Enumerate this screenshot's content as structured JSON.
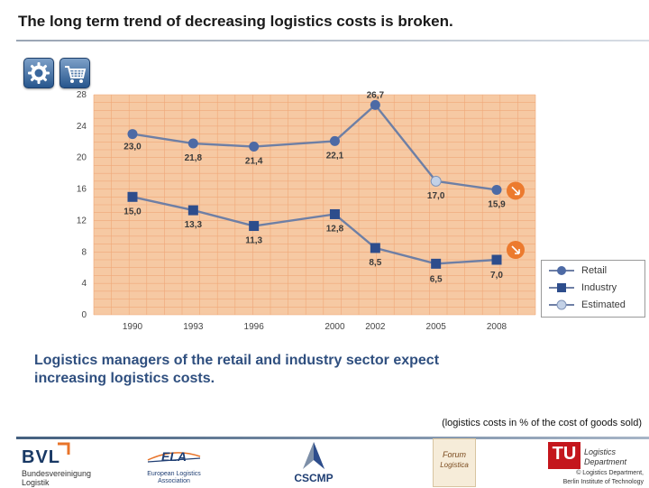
{
  "header": {
    "title": "The long term trend of decreasing logistics costs is broken."
  },
  "toolbar": {
    "icons": [
      "settings-gear-icon",
      "shopping-cart-icon"
    ]
  },
  "message": {
    "line1": "Logistics managers of the retail and industry sector expect",
    "line2": "increasing logistics costs."
  },
  "note": "(logistics costs in % of the cost of goods sold)",
  "chart_data": {
    "type": "line",
    "x": [
      1990,
      1993,
      1996,
      2000,
      2002,
      2005,
      2008
    ],
    "categories": [
      "1990",
      "1993",
      "1996",
      "2000",
      "2002",
      "2005",
      "2008"
    ],
    "ylim": [
      0,
      28
    ],
    "yticks": [
      0,
      4,
      8,
      12,
      16,
      20,
      24,
      28
    ],
    "series": [
      {
        "name": "Retail",
        "marker": "circle",
        "values": [
          23.0,
          21.8,
          21.4,
          22.1,
          26.7,
          17.0,
          15.9
        ],
        "labels": [
          "23,0",
          "21,8",
          "21,4",
          "22,1",
          "26,7",
          "17,0",
          "15,9"
        ]
      },
      {
        "name": "Industry",
        "marker": "square",
        "values": [
          15.0,
          13.3,
          11.3,
          12.8,
          8.5,
          6.5,
          7.0
        ],
        "labels": [
          "15,0",
          "13,3",
          "11,3",
          "12,8",
          "8,5",
          "6,5",
          "7,0"
        ]
      }
    ],
    "estimated_label": "Estimated",
    "estimated_points": [
      {
        "series": "Retail",
        "x": 2005
      }
    ],
    "grid": true,
    "legend_position": "right",
    "colors": {
      "background": "#f6c9a3",
      "grid": "#f0a878",
      "line": "#6e7fa5",
      "marker": "#4d6aa5",
      "estimated": "#c3d1e6",
      "arrow": "#ec7a2e"
    },
    "title": "",
    "xlabel": "",
    "ylabel": ""
  },
  "legend": {
    "items": [
      "Retail",
      "Industry",
      "Estimated"
    ]
  },
  "footer": {
    "bvl": {
      "name": "BVL",
      "sub1": "Bundesvereinigung",
      "sub2": "Logistik"
    },
    "ela": {
      "name": "ELA",
      "sub1": "European Logistics",
      "sub2": "Association"
    },
    "cscmp": {
      "name": "CSCMP"
    },
    "forum": {
      "name1": "Forum",
      "name2": "Logistica"
    },
    "tu": {
      "short": "TU",
      "line1": "Logistics",
      "line2": "Department",
      "copy1": "© Logistics Department,",
      "copy2": "Berlin Institute of Technology"
    }
  }
}
